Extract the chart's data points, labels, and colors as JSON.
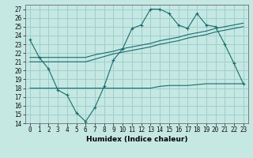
{
  "xlabel": "Humidex (Indice chaleur)",
  "xlim": [
    -0.5,
    23.5
  ],
  "ylim": [
    14,
    27.5
  ],
  "yticks": [
    14,
    15,
    16,
    17,
    18,
    19,
    20,
    21,
    22,
    23,
    24,
    25,
    26,
    27
  ],
  "xticks": [
    0,
    1,
    2,
    3,
    4,
    5,
    6,
    7,
    8,
    9,
    10,
    11,
    12,
    13,
    14,
    15,
    16,
    17,
    18,
    19,
    20,
    21,
    22,
    23
  ],
  "background_color": "#c5e8e3",
  "grid_color": "#9ecece",
  "line_color": "#1a6b6b",
  "line1_x": [
    0,
    1,
    2,
    3,
    4,
    5,
    6,
    7,
    8,
    9,
    10,
    11,
    12,
    13,
    14,
    15,
    16,
    17,
    18,
    19,
    20,
    21,
    22,
    23
  ],
  "line1_y": [
    23.5,
    21.5,
    20.2,
    17.8,
    17.2,
    15.2,
    14.2,
    15.8,
    18.2,
    21.2,
    22.5,
    24.8,
    25.2,
    27.0,
    27.0,
    26.5,
    25.2,
    24.8,
    26.5,
    25.2,
    25.0,
    23.0,
    20.8,
    18.5
  ],
  "line2_x": [
    0,
    1,
    2,
    3,
    4,
    5,
    6,
    7,
    8,
    9,
    10,
    11,
    12,
    13,
    14,
    15,
    16,
    17,
    18,
    19,
    20,
    21,
    22,
    23
  ],
  "line2_y": [
    21.5,
    21.5,
    21.5,
    21.5,
    21.5,
    21.5,
    21.5,
    21.8,
    22.0,
    22.2,
    22.5,
    22.7,
    22.9,
    23.1,
    23.4,
    23.6,
    23.8,
    24.1,
    24.3,
    24.5,
    24.8,
    25.0,
    25.2,
    25.4
  ],
  "line3_x": [
    0,
    1,
    2,
    3,
    4,
    5,
    6,
    7,
    8,
    9,
    10,
    11,
    12,
    13,
    14,
    15,
    16,
    17,
    18,
    19,
    20,
    21,
    22,
    23
  ],
  "line3_y": [
    21.0,
    21.0,
    21.0,
    21.0,
    21.0,
    21.0,
    21.0,
    21.3,
    21.6,
    21.9,
    22.1,
    22.3,
    22.5,
    22.7,
    23.0,
    23.2,
    23.4,
    23.7,
    23.9,
    24.1,
    24.4,
    24.6,
    24.8,
    25.0
  ],
  "line4_x": [
    0,
    1,
    2,
    3,
    4,
    5,
    6,
    7,
    8,
    9,
    10,
    11,
    12,
    13,
    14,
    15,
    16,
    17,
    18,
    19,
    20,
    21,
    22,
    23
  ],
  "line4_y": [
    18.0,
    18.0,
    18.0,
    18.0,
    18.0,
    18.0,
    18.0,
    18.0,
    18.0,
    18.0,
    18.0,
    18.0,
    18.0,
    18.0,
    18.2,
    18.3,
    18.3,
    18.3,
    18.4,
    18.5,
    18.5,
    18.5,
    18.5,
    18.5
  ],
  "tick_fontsize": 5.5,
  "xlabel_fontsize": 6.5
}
